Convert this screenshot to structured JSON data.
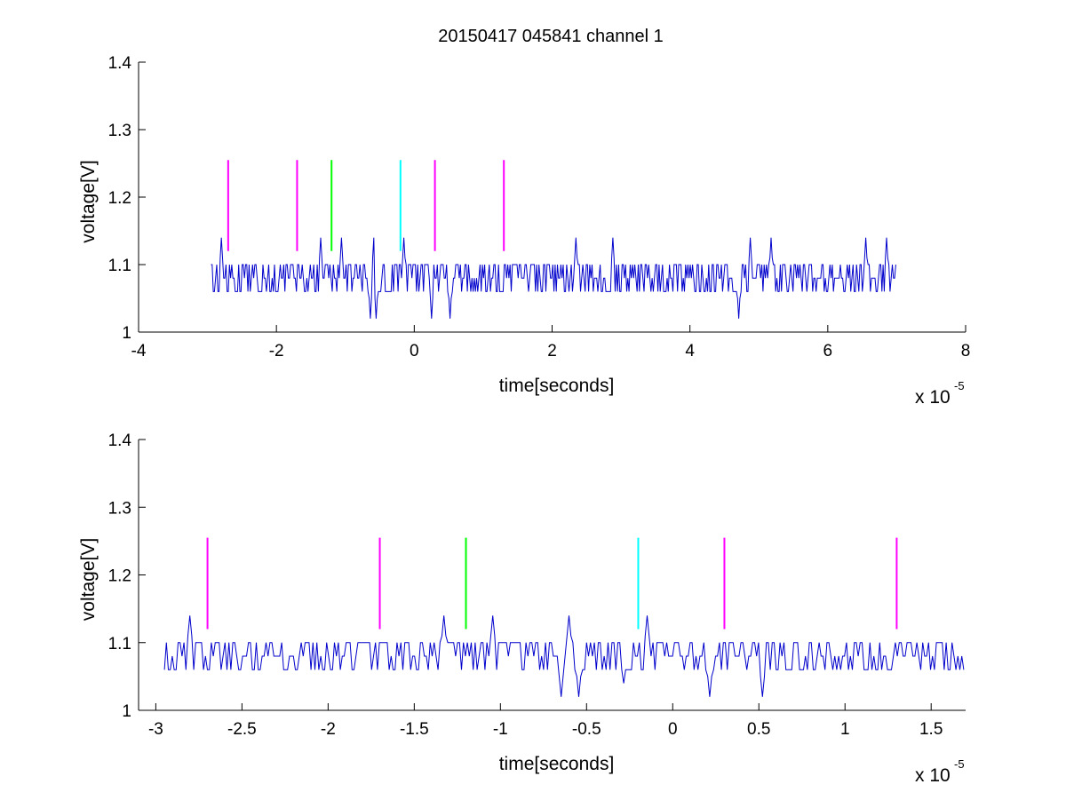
{
  "figure": {
    "title": "20150417 045841 channel 1"
  },
  "chart_data": [
    {
      "type": "line",
      "title": "20150417 045841 channel 1",
      "xlabel": "time[seconds]",
      "ylabel": "voltage[V]",
      "x_multiplier_label": "x 10",
      "x_multiplier_exponent": "-5",
      "xlim": [
        -4,
        8
      ],
      "ylim": [
        1,
        1.4
      ],
      "xticks": [
        -4,
        -2,
        0,
        2,
        4,
        6,
        8
      ],
      "xtick_labels": [
        "-4",
        "-2",
        "0",
        "2",
        "4",
        "6",
        "8"
      ],
      "yticks": [
        1,
        1.1,
        1.2,
        1.3,
        1.4
      ],
      "ytick_labels": [
        "1",
        "1.1",
        "1.2",
        "1.3",
        "1.4"
      ],
      "grid": false,
      "signal": {
        "color": "#0000cc",
        "x_start": -2.95,
        "x_end": 7.0,
        "levels": [
          1.06,
          1.08,
          1.1
        ],
        "spikes_up": [
          {
            "x": -2.8,
            "y": 1.14
          },
          {
            "x": -1.35,
            "y": 1.14
          },
          {
            "x": -1.05,
            "y": 1.14
          },
          {
            "x": -0.58,
            "y": 1.14
          },
          {
            "x": -0.15,
            "y": 1.14
          },
          {
            "x": 2.35,
            "y": 1.14
          },
          {
            "x": 2.88,
            "y": 1.14
          },
          {
            "x": 4.88,
            "y": 1.14
          },
          {
            "x": 5.18,
            "y": 1.14
          },
          {
            "x": 6.55,
            "y": 1.14
          },
          {
            "x": 6.85,
            "y": 1.14
          }
        ],
        "spikes_down": [
          {
            "x": -0.63,
            "y": 1.02
          },
          {
            "x": -0.55,
            "y": 1.02
          },
          {
            "x": 0.25,
            "y": 1.02
          },
          {
            "x": 0.52,
            "y": 1.02
          },
          {
            "x": 4.7,
            "y": 1.02
          }
        ]
      },
      "markers": [
        {
          "x": -2.7,
          "y0": 1.12,
          "y1": 1.255,
          "color": "#ff00ff"
        },
        {
          "x": -1.7,
          "y0": 1.12,
          "y1": 1.255,
          "color": "#ff00ff"
        },
        {
          "x": -1.2,
          "y0": 1.12,
          "y1": 1.255,
          "color": "#00ff00"
        },
        {
          "x": -0.2,
          "y0": 1.12,
          "y1": 1.255,
          "color": "#00ffff"
        },
        {
          "x": 0.3,
          "y0": 1.12,
          "y1": 1.255,
          "color": "#ff00ff"
        },
        {
          "x": 1.3,
          "y0": 1.12,
          "y1": 1.255,
          "color": "#ff00ff"
        }
      ]
    },
    {
      "type": "line",
      "title": "",
      "xlabel": "time[seconds]",
      "ylabel": "voltage[V]",
      "x_multiplier_label": "x 10",
      "x_multiplier_exponent": "-5",
      "xlim": [
        -3.1,
        1.7
      ],
      "ylim": [
        1,
        1.4
      ],
      "xticks": [
        -3,
        -2.5,
        -2,
        -1.5,
        -1,
        -0.5,
        0,
        0.5,
        1,
        1.5
      ],
      "xtick_labels": [
        "-3",
        "-2.5",
        "-2",
        "-1.5",
        "-1",
        "-0.5",
        "0",
        "0.5",
        "1",
        "1.5"
      ],
      "yticks": [
        1,
        1.1,
        1.2,
        1.3,
        1.4
      ],
      "ytick_labels": [
        "1",
        "1.1",
        "1.2",
        "1.3",
        "1.4"
      ],
      "grid": false,
      "signal": {
        "color": "#0000cc",
        "x_start": -2.95,
        "x_end": 1.7,
        "levels": [
          1.06,
          1.08,
          1.1
        ],
        "spikes_up": [
          {
            "x": -2.8,
            "y": 1.14
          },
          {
            "x": -1.33,
            "y": 1.14
          },
          {
            "x": -1.05,
            "y": 1.14
          },
          {
            "x": -0.6,
            "y": 1.14
          },
          {
            "x": -0.15,
            "y": 1.14
          }
        ],
        "spikes_down": [
          {
            "x": -0.65,
            "y": 1.02
          },
          {
            "x": -0.55,
            "y": 1.02
          },
          {
            "x": -0.28,
            "y": 1.04
          },
          {
            "x": 0.22,
            "y": 1.02
          },
          {
            "x": 0.52,
            "y": 1.02
          }
        ]
      },
      "markers": [
        {
          "x": -2.7,
          "y0": 1.12,
          "y1": 1.255,
          "color": "#ff00ff"
        },
        {
          "x": -1.7,
          "y0": 1.12,
          "y1": 1.255,
          "color": "#ff00ff"
        },
        {
          "x": -1.2,
          "y0": 1.12,
          "y1": 1.255,
          "color": "#00ff00"
        },
        {
          "x": -0.2,
          "y0": 1.12,
          "y1": 1.255,
          "color": "#00ffff"
        },
        {
          "x": 0.3,
          "y0": 1.12,
          "y1": 1.255,
          "color": "#ff00ff"
        },
        {
          "x": 1.3,
          "y0": 1.12,
          "y1": 1.255,
          "color": "#ff00ff"
        }
      ]
    }
  ]
}
